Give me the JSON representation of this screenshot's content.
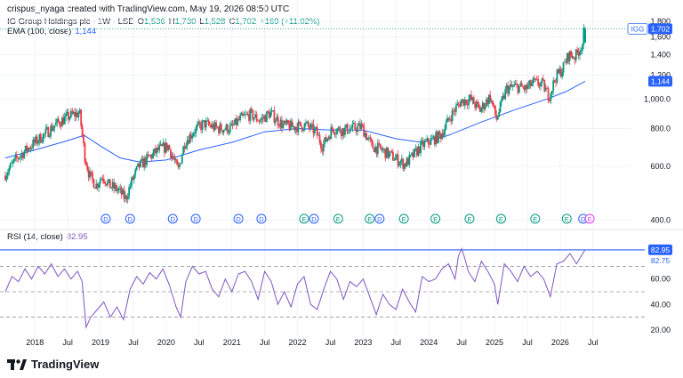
{
  "header": {
    "caption": "crispus_nyaga created with TradingView.com, May 19, 2026 08:50 UTC"
  },
  "legend": {
    "symbol": "IG Group Holdings plc · 1W · LSE",
    "o_label": "O",
    "o": "1,536",
    "h_label": "H",
    "h": "1,730",
    "l_label": "L",
    "l": "1,528",
    "c_label": "C",
    "c": "1,702",
    "change": "+169 (+11.02%)",
    "ema_label": "EMA (100, close)",
    "ema_value": "1,144",
    "rsi_label": "RSI (14, close)",
    "rsi_value": "82.95"
  },
  "colors": {
    "up": "#089981",
    "down": "#f23645",
    "ema": "#2962ff",
    "rsi": "#7e57c2",
    "grid": "#f0f3fa",
    "dividend": "#2962ff",
    "earnings": "#089981",
    "future_earnings": "#e040fb"
  },
  "footer": {
    "brand": "TradingView",
    "logo_icon": "tradingview-logo-icon"
  },
  "chart_data": [
    {
      "type": "candlestick",
      "title": "IG Group Holdings plc · 1W · LSE",
      "y_scale": "log",
      "ylim": [
        380,
        1850
      ],
      "y_ticks": [
        "400.0",
        "600.0",
        "800.0",
        "1,000.0",
        "1,200",
        "1,400",
        "1,600",
        "1,800"
      ],
      "x_ticks": [
        "2018",
        "Jul",
        "2019",
        "Jul",
        "2020",
        "Jul",
        "2021",
        "Jul",
        "2022",
        "Jul",
        "2023",
        "Jul",
        "2024",
        "Jul",
        "2025",
        "Jul",
        "2026",
        "Jul"
      ],
      "x_tick_times": [
        2018.0,
        2018.5,
        2019.0,
        2019.5,
        2020.0,
        2020.5,
        2021.0,
        2021.5,
        2022.0,
        2022.5,
        2023.0,
        2023.5,
        2024.0,
        2024.5,
        2025.0,
        2025.5,
        2026.0,
        2026.5
      ],
      "xlim": [
        2017.55,
        2026.95
      ],
      "price_path": [
        [
          2017.55,
          560
        ],
        [
          2017.75,
          640
        ],
        [
          2017.95,
          700
        ],
        [
          2018.15,
          760
        ],
        [
          2018.35,
          830
        ],
        [
          2018.55,
          880
        ],
        [
          2018.7,
          900
        ],
        [
          2018.78,
          650
        ],
        [
          2018.85,
          560
        ],
        [
          2018.95,
          520
        ],
        [
          2019.05,
          560
        ],
        [
          2019.15,
          520
        ],
        [
          2019.3,
          500
        ],
        [
          2019.4,
          470
        ],
        [
          2019.5,
          540
        ],
        [
          2019.6,
          600
        ],
        [
          2019.75,
          640
        ],
        [
          2019.9,
          680
        ],
        [
          2020.05,
          700
        ],
        [
          2020.15,
          620
        ],
        [
          2020.2,
          580
        ],
        [
          2020.3,
          720
        ],
        [
          2020.45,
          790
        ],
        [
          2020.6,
          830
        ],
        [
          2020.8,
          800
        ],
        [
          2021.0,
          800
        ],
        [
          2021.15,
          860
        ],
        [
          2021.3,
          890
        ],
        [
          2021.45,
          850
        ],
        [
          2021.6,
          900
        ],
        [
          2021.8,
          820
        ],
        [
          2021.95,
          810
        ],
        [
          2022.15,
          820
        ],
        [
          2022.3,
          780
        ],
        [
          2022.4,
          700
        ],
        [
          2022.55,
          800
        ],
        [
          2022.7,
          790
        ],
        [
          2022.85,
          800
        ],
        [
          2023.0,
          810
        ],
        [
          2023.15,
          700
        ],
        [
          2023.3,
          680
        ],
        [
          2023.5,
          640
        ],
        [
          2023.65,
          610
        ],
        [
          2023.75,
          640
        ],
        [
          2023.9,
          700
        ],
        [
          2024.05,
          730
        ],
        [
          2024.2,
          760
        ],
        [
          2024.35,
          880
        ],
        [
          2024.5,
          980
        ],
        [
          2024.65,
          1000
        ],
        [
          2024.8,
          920
        ],
        [
          2024.95,
          1020
        ],
        [
          2025.05,
          860
        ],
        [
          2025.2,
          1080
        ],
        [
          2025.35,
          1100
        ],
        [
          2025.5,
          1080
        ],
        [
          2025.6,
          1130
        ],
        [
          2025.75,
          1120
        ],
        [
          2025.85,
          1020
        ],
        [
          2025.95,
          1180
        ],
        [
          2026.05,
          1250
        ],
        [
          2026.15,
          1400
        ],
        [
          2026.25,
          1380
        ],
        [
          2026.32,
          1470
        ],
        [
          2026.37,
          1536
        ],
        [
          2026.38,
          1702
        ]
      ],
      "last_candle": {
        "o": 1536,
        "h": 1730,
        "l": 1528,
        "c": 1702
      },
      "last_price_label": "1,702",
      "symbol_tag": "IGG",
      "ema": {
        "label": "1,144",
        "path": [
          [
            2017.55,
            640
          ],
          [
            2018.0,
            680
          ],
          [
            2018.5,
            730
          ],
          [
            2018.75,
            760
          ],
          [
            2019.0,
            700
          ],
          [
            2019.3,
            640
          ],
          [
            2019.6,
            620
          ],
          [
            2020.0,
            630
          ],
          [
            2020.5,
            680
          ],
          [
            2021.0,
            720
          ],
          [
            2021.5,
            780
          ],
          [
            2022.0,
            800
          ],
          [
            2022.5,
            790
          ],
          [
            2023.0,
            790
          ],
          [
            2023.5,
            740
          ],
          [
            2023.9,
            720
          ],
          [
            2024.3,
            760
          ],
          [
            2024.8,
            840
          ],
          [
            2025.3,
            920
          ],
          [
            2025.8,
            1000
          ],
          [
            2026.1,
            1060
          ],
          [
            2026.38,
            1144
          ]
        ]
      },
      "events": [
        {
          "t": 2019.08,
          "type": "dividend",
          "label": "D"
        },
        {
          "t": 2019.45,
          "type": "dividend",
          "label": "D"
        },
        {
          "t": 2020.1,
          "type": "dividend",
          "label": "D"
        },
        {
          "t": 2020.45,
          "type": "dividend",
          "label": "D"
        },
        {
          "t": 2021.1,
          "type": "dividend",
          "label": "D"
        },
        {
          "t": 2021.45,
          "type": "dividend",
          "label": "D"
        },
        {
          "t": 2022.1,
          "type": "earnings",
          "label": "E"
        },
        {
          "t": 2022.25,
          "type": "dividend",
          "label": "D"
        },
        {
          "t": 2022.62,
          "type": "earnings",
          "label": "E"
        },
        {
          "t": 2023.1,
          "type": "earnings",
          "label": "E"
        },
        {
          "t": 2023.25,
          "type": "dividend",
          "label": "D"
        },
        {
          "t": 2023.62,
          "type": "earnings",
          "label": "E"
        },
        {
          "t": 2024.1,
          "type": "earnings",
          "label": "E"
        },
        {
          "t": 2024.62,
          "type": "earnings",
          "label": "E"
        },
        {
          "t": 2025.1,
          "type": "earnings",
          "label": "E"
        },
        {
          "t": 2025.62,
          "type": "earnings",
          "label": "E"
        },
        {
          "t": 2026.1,
          "type": "earnings",
          "label": "E"
        },
        {
          "t": 2026.35,
          "type": "dividend",
          "label": "D"
        },
        {
          "t": 2026.45,
          "type": "future_earnings",
          "label": "E"
        }
      ]
    },
    {
      "type": "line",
      "title": "RSI (14, close)",
      "ylim": [
        15,
        92
      ],
      "y_ticks": [
        "20.00",
        "40.00",
        "60.00"
      ],
      "levels": [
        70,
        50,
        30
      ],
      "last_value_label": "82.95",
      "upper_band_label": "82.75",
      "series": [
        {
          "points": [
            [
              2017.55,
              50
            ],
            [
              2017.65,
              62
            ],
            [
              2017.75,
              58
            ],
            [
              2017.85,
              68
            ],
            [
              2017.95,
              60
            ],
            [
              2018.05,
              70
            ],
            [
              2018.15,
              64
            ],
            [
              2018.25,
              72
            ],
            [
              2018.35,
              62
            ],
            [
              2018.45,
              68
            ],
            [
              2018.55,
              60
            ],
            [
              2018.65,
              66
            ],
            [
              2018.72,
              58
            ],
            [
              2018.78,
              22
            ],
            [
              2018.85,
              30
            ],
            [
              2018.95,
              36
            ],
            [
              2019.05,
              42
            ],
            [
              2019.15,
              30
            ],
            [
              2019.25,
              38
            ],
            [
              2019.35,
              28
            ],
            [
              2019.45,
              52
            ],
            [
              2019.55,
              62
            ],
            [
              2019.65,
              56
            ],
            [
              2019.75,
              65
            ],
            [
              2019.85,
              60
            ],
            [
              2019.95,
              68
            ],
            [
              2020.05,
              55
            ],
            [
              2020.15,
              38
            ],
            [
              2020.22,
              30
            ],
            [
              2020.3,
              58
            ],
            [
              2020.4,
              70
            ],
            [
              2020.5,
              64
            ],
            [
              2020.6,
              66
            ],
            [
              2020.7,
              52
            ],
            [
              2020.8,
              46
            ],
            [
              2020.9,
              60
            ],
            [
              2021.0,
              50
            ],
            [
              2021.1,
              64
            ],
            [
              2021.2,
              66
            ],
            [
              2021.3,
              58
            ],
            [
              2021.4,
              44
            ],
            [
              2021.5,
              66
            ],
            [
              2021.6,
              58
            ],
            [
              2021.7,
              40
            ],
            [
              2021.8,
              50
            ],
            [
              2021.9,
              38
            ],
            [
              2022.0,
              56
            ],
            [
              2022.1,
              62
            ],
            [
              2022.2,
              40
            ],
            [
              2022.3,
              36
            ],
            [
              2022.4,
              52
            ],
            [
              2022.5,
              66
            ],
            [
              2022.6,
              60
            ],
            [
              2022.7,
              44
            ],
            [
              2022.8,
              58
            ],
            [
              2022.9,
              54
            ],
            [
              2023.0,
              60
            ],
            [
              2023.1,
              46
            ],
            [
              2023.2,
              32
            ],
            [
              2023.3,
              48
            ],
            [
              2023.4,
              40
            ],
            [
              2023.5,
              36
            ],
            [
              2023.6,
              52
            ],
            [
              2023.7,
              42
            ],
            [
              2023.8,
              34
            ],
            [
              2023.9,
              62
            ],
            [
              2024.0,
              58
            ],
            [
              2024.1,
              60
            ],
            [
              2024.2,
              68
            ],
            [
              2024.3,
              72
            ],
            [
              2024.4,
              60
            ],
            [
              2024.45,
              78
            ],
            [
              2024.5,
              84
            ],
            [
              2024.55,
              76
            ],
            [
              2024.6,
              66
            ],
            [
              2024.7,
              58
            ],
            [
              2024.8,
              74
            ],
            [
              2024.9,
              66
            ],
            [
              2025.0,
              56
            ],
            [
              2025.05,
              40
            ],
            [
              2025.15,
              72
            ],
            [
              2025.25,
              66
            ],
            [
              2025.35,
              58
            ],
            [
              2025.45,
              70
            ],
            [
              2025.55,
              62
            ],
            [
              2025.65,
              66
            ],
            [
              2025.75,
              60
            ],
            [
              2025.85,
              46
            ],
            [
              2025.95,
              72
            ],
            [
              2026.05,
              74
            ],
            [
              2026.15,
              80
            ],
            [
              2026.25,
              72
            ],
            [
              2026.32,
              78
            ],
            [
              2026.38,
              82.95
            ]
          ]
        }
      ]
    }
  ]
}
